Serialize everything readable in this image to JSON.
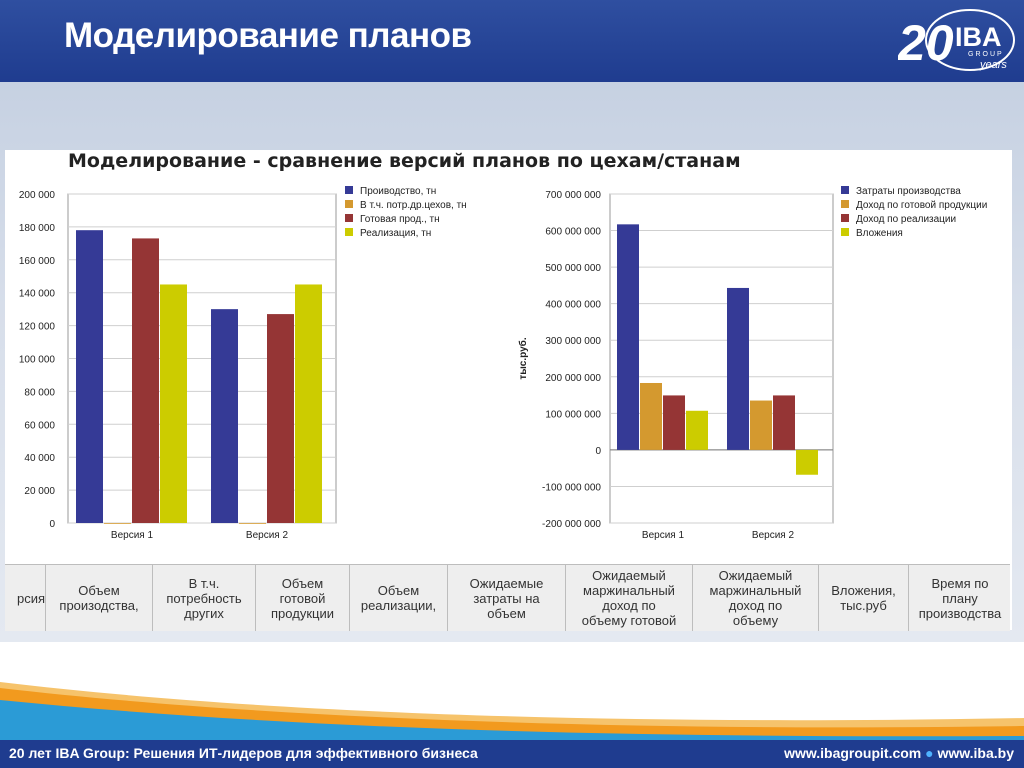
{
  "header": {
    "title": "Моделирование планов",
    "logo_text": "IBA",
    "logo_group": "GROUP",
    "logo_years": "years",
    "logo_number": "20"
  },
  "colors": {
    "blue": "#353a96",
    "orange": "#d4992f",
    "red": "#953535",
    "yellow": "#cccc00",
    "header_bg": "#1f3c8f",
    "accent_orange": "#f29a1e"
  },
  "chart_title": "Моделирование - сравнение версий планов по цехам/станам",
  "chart_data": [
    {
      "type": "bar",
      "categories": [
        "Версия 1",
        "Версия 2"
      ],
      "ylim": [
        0,
        200000
      ],
      "ytick_labels": [
        "200 000",
        "180 000",
        "160 000",
        "140 000",
        "120 000",
        "100 000",
        "80 000",
        "60 000",
        "40 000",
        "20 000",
        "0"
      ],
      "ylabel": "",
      "series": [
        {
          "name": "Проиводство, тн",
          "color": "#353a96",
          "values": [
            178000,
            130000
          ]
        },
        {
          "name": "В т.ч. потр.др.цехов, тн",
          "color": "#d4992f",
          "values": [
            0,
            0
          ]
        },
        {
          "name": "Готовая прод., тн",
          "color": "#953535",
          "values": [
            173000,
            127000
          ]
        },
        {
          "name": "Реализация, тн",
          "color": "#cccc00",
          "values": [
            145000,
            145000
          ]
        }
      ],
      "legend_position": "right"
    },
    {
      "type": "bar",
      "categories": [
        "Версия 1",
        "Версия 2"
      ],
      "ylim": [
        -200000000,
        700000000
      ],
      "ytick_labels": [
        "700 000 000",
        "600 000 000",
        "500 000 000",
        "400 000 000",
        "300 000 000",
        "200 000 000",
        "100 000 000",
        "0",
        "-100 000 000",
        "-200 000 000"
      ],
      "ylabel": "тыс.руб.",
      "series": [
        {
          "name": "Затраты производства",
          "color": "#353a96",
          "values": [
            617000000,
            443000000
          ]
        },
        {
          "name": "Доход по готовой продукции",
          "color": "#d4992f",
          "values": [
            183000000,
            135000000
          ]
        },
        {
          "name": "Доход по реализации",
          "color": "#953535",
          "values": [
            149000000,
            149000000
          ]
        },
        {
          "name": "Вложения",
          "color": "#cccc00",
          "values": [
            107000000,
            -68000000
          ]
        }
      ],
      "legend_position": "right"
    }
  ],
  "table": {
    "headers": [
      "рсия",
      "Объем\nпроизодства,",
      "В т.ч.\nпотребность\nдругих",
      "Объем\nготовой\nпродукции",
      "Объем\nреализации,",
      "Ожидаемые\nзатраты на\nобъем",
      "Ожидаемый\nмаржинальный\nдоход по\nобъему готовой",
      "Ожидаемый\nмаржинальный\nдоход по\nобъему",
      "Вложения,\nтыс.руб",
      "Время по\nплану\nпроизводства"
    ]
  },
  "footer": {
    "left": "20 лет IBA Group: Решения ИТ-лидеров для эффективного бизнеса",
    "site1": "www.ibagroupit.com",
    "separator": "●",
    "site2": "www.iba.by"
  }
}
